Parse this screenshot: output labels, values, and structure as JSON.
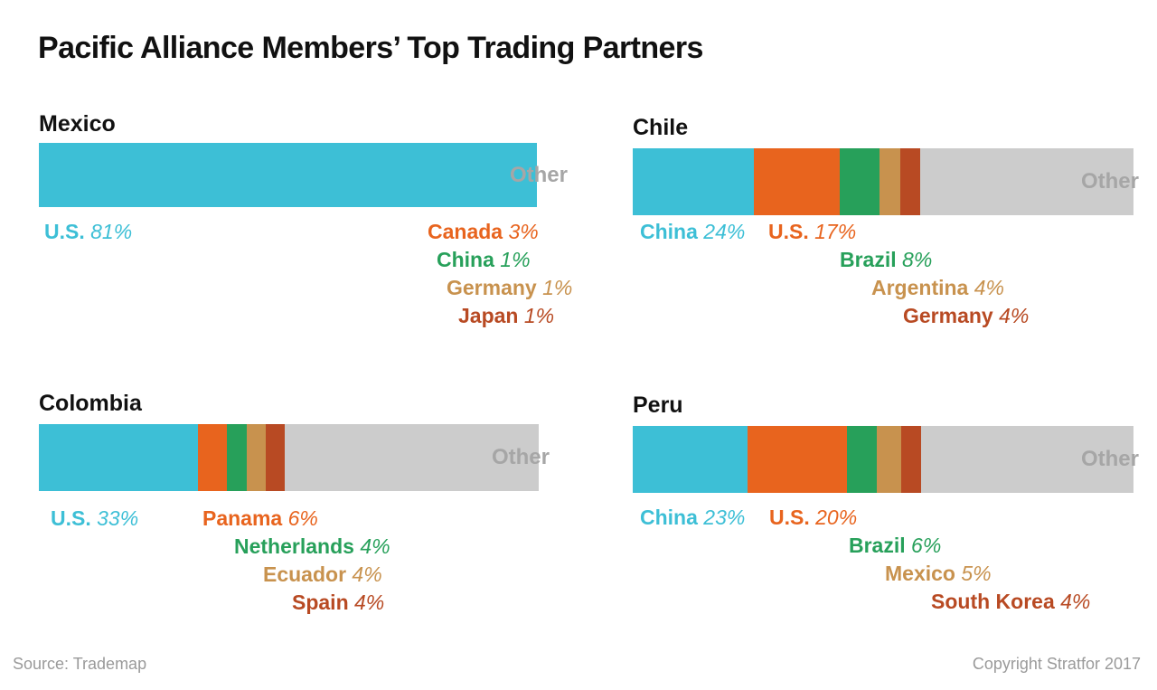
{
  "title": "Pacific Alliance Members’ Top Trading Partners",
  "source": "Source: Trademap",
  "copyright": "Copyright Stratfor 2017",
  "colors": {
    "blue": "#3dbfd6",
    "orange": "#e8641e",
    "green": "#27a05a",
    "tan": "#c8924e",
    "rust": "#b84a23",
    "other_fill": "#cccccc",
    "other_text": "#a6a6a6"
  },
  "chart_data": [
    {
      "type": "bar",
      "stacked": true,
      "orientation": "horizontal",
      "title": "Mexico",
      "other_label": "Other",
      "series": [
        {
          "name": "U.S.",
          "value": 81,
          "label": "81%",
          "color": "#3dbfd6"
        },
        {
          "name": "Canada",
          "value": 3,
          "label": "3%",
          "color": "#e8641e"
        },
        {
          "name": "China",
          "value": 1,
          "label": "1%",
          "color": "#27a05a"
        },
        {
          "name": "Germany",
          "value": 1,
          "label": "1%",
          "color": "#c8924e"
        },
        {
          "name": "Japan",
          "value": 1,
          "label": "1%",
          "color": "#b84a23"
        }
      ]
    },
    {
      "type": "bar",
      "stacked": true,
      "orientation": "horizontal",
      "title": "Chile",
      "other_label": "Other",
      "series": [
        {
          "name": "China",
          "value": 24,
          "label": "24%",
          "color": "#3dbfd6"
        },
        {
          "name": "U.S.",
          "value": 17,
          "label": "17%",
          "color": "#e8641e"
        },
        {
          "name": "Brazil",
          "value": 8,
          "label": "8%",
          "color": "#27a05a"
        },
        {
          "name": "Argentina",
          "value": 4,
          "label": "4%",
          "color": "#c8924e"
        },
        {
          "name": "Germany",
          "value": 4,
          "label": "4%",
          "color": "#b84a23"
        }
      ]
    },
    {
      "type": "bar",
      "stacked": true,
      "orientation": "horizontal",
      "title": "Colombia",
      "other_label": "Other",
      "series": [
        {
          "name": "U.S.",
          "value": 33,
          "label": "33%",
          "color": "#3dbfd6"
        },
        {
          "name": "Panama",
          "value": 6,
          "label": "6%",
          "color": "#e8641e"
        },
        {
          "name": "Netherlands",
          "value": 4,
          "label": "4%",
          "color": "#27a05a"
        },
        {
          "name": "Ecuador",
          "value": 4,
          "label": "4%",
          "color": "#c8924e"
        },
        {
          "name": "Spain",
          "value": 4,
          "label": "4%",
          "color": "#b84a23"
        }
      ]
    },
    {
      "type": "bar",
      "stacked": true,
      "orientation": "horizontal",
      "title": "Peru",
      "other_label": "Other",
      "series": [
        {
          "name": "China",
          "value": 23,
          "label": "23%",
          "color": "#3dbfd6"
        },
        {
          "name": "U.S.",
          "value": 20,
          "label": "20%",
          "color": "#e8641e"
        },
        {
          "name": "Brazil",
          "value": 6,
          "label": "6%",
          "color": "#27a05a"
        },
        {
          "name": "Mexico",
          "value": 5,
          "label": "5%",
          "color": "#c8924e"
        },
        {
          "name": "South Korea",
          "value": 4,
          "label": "4%",
          "color": "#b84a23"
        }
      ]
    }
  ]
}
